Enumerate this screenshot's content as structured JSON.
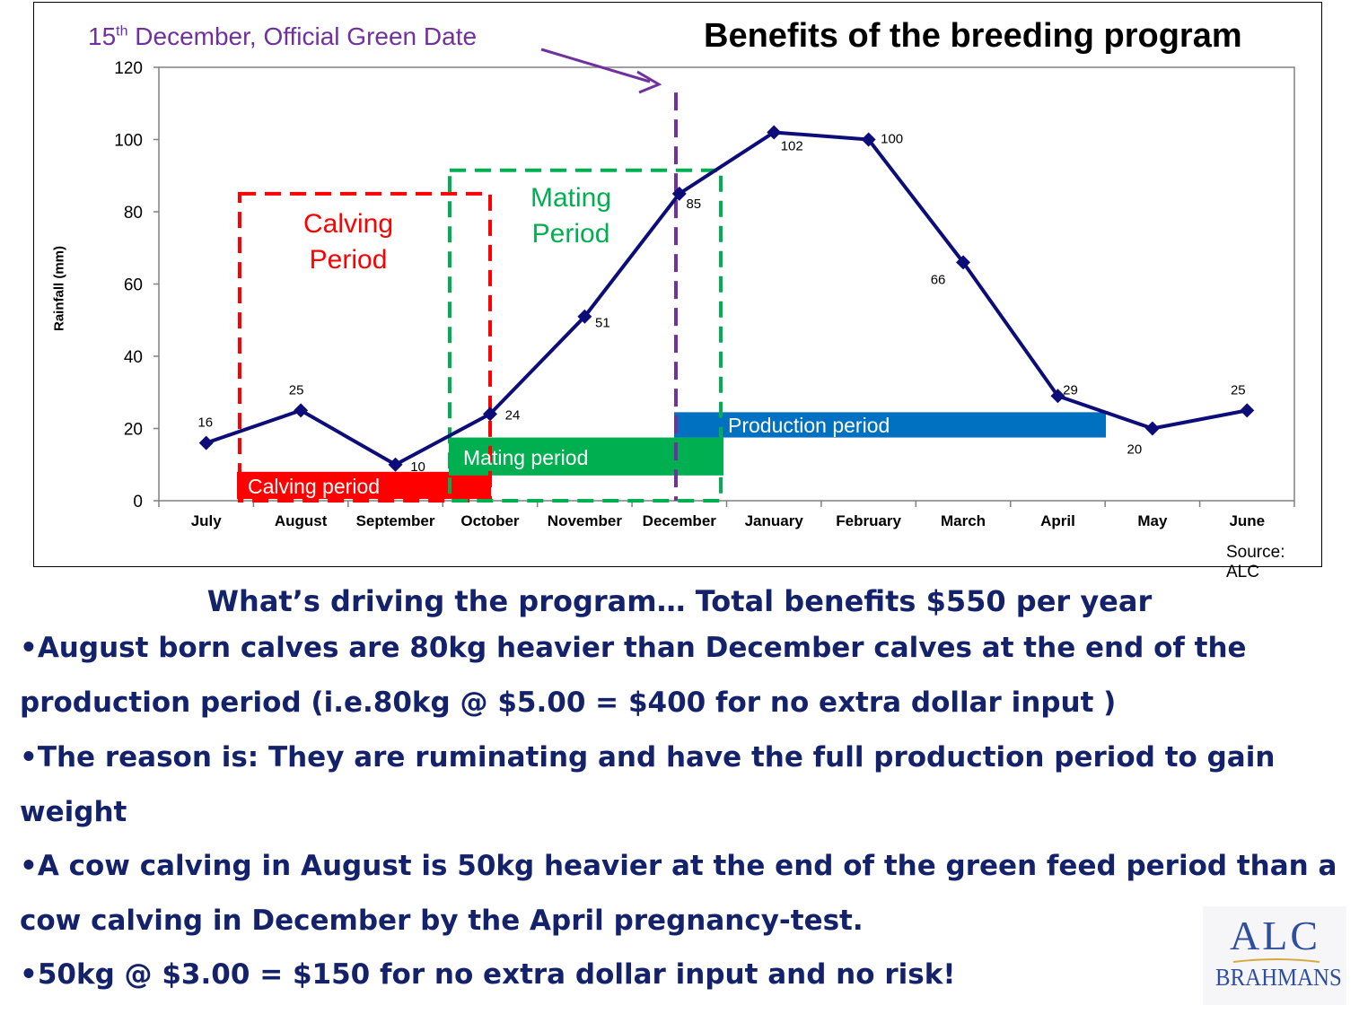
{
  "chart_data": {
    "type": "line",
    "title": "Benefits of the breeding program",
    "xlabel": "",
    "ylabel": "Rainfall (mm)",
    "ylim": [
      0,
      120
    ],
    "yticks": [
      0,
      20,
      40,
      60,
      80,
      100,
      120
    ],
    "categories": [
      "July",
      "August",
      "September",
      "October",
      "November",
      "December",
      "January",
      "February",
      "March",
      "April",
      "May",
      "June"
    ],
    "series": [
      {
        "values": [
          16,
          25,
          10,
          24,
          51,
          85,
          102,
          100,
          66,
          29,
          20,
          25
        ]
      }
    ],
    "data_labels": [
      "16",
      "25",
      "10",
      "24",
      "51",
      "85",
      "102",
      "100",
      "66",
      "29",
      "20",
      "25"
    ],
    "grid": false,
    "annotations": {
      "green_date": {
        "text_before": "15",
        "superscript": "th",
        "text_after": " December, Official Green Date",
        "color": "#7030a0"
      },
      "calving_box_label": [
        "Calving",
        "Period"
      ],
      "mating_box_label": [
        "Mating",
        "Period"
      ],
      "calving_bar": "Calving period",
      "mating_bar": "Mating period",
      "production_bar": "Production period"
    },
    "source": "Source: ALC",
    "colors": {
      "line": "#0d0d7a",
      "calving": "#ff0000",
      "mating": "#00b050",
      "production": "#0070c0",
      "green_date": "#7030a0"
    }
  },
  "text": {
    "heading": "What’s driving the program… Total benefits $550 per year",
    "bullets": [
      "•August born calves are 80kg heavier than December calves at the end of  the production period  (i.e.80kg @ $5.00 = $400 for no extra dollar input )",
      "•The reason is: They are ruminating and have the full production period to gain weight",
      "•A cow calving in August is 50kg heavier at the end of  the green feed period than a cow calving in December by the April pregnancy-test.",
      "•50kg @ $3.00 = $150 for no extra dollar input and no risk!"
    ],
    "text_color": "#13226a"
  },
  "logo": {
    "line1": "ALC",
    "line2": "BRAHMANS",
    "color": "#2e4f9e"
  }
}
